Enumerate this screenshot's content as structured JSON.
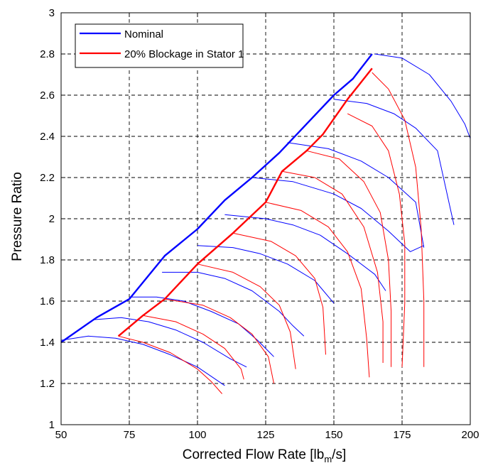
{
  "chart_data": {
    "type": "line",
    "title": "",
    "xlabel": "Corrected Flow Rate [lb_m/s]",
    "xlabel_parts": {
      "main": "Corrected Flow Rate [lb",
      "sub": "m",
      "tail": "/s]"
    },
    "ylabel": "Pressure Ratio",
    "xlim": [
      50,
      200
    ],
    "ylim": [
      1,
      3
    ],
    "xticks": [
      50,
      75,
      100,
      125,
      150,
      175,
      200
    ],
    "yticks": [
      1,
      1.2,
      1.4,
      1.6,
      1.8,
      2,
      2.2,
      2.4,
      2.6,
      2.8,
      3
    ],
    "xtick_labels": [
      "50",
      "75",
      "100",
      "125",
      "150",
      "175",
      "200"
    ],
    "ytick_labels": [
      "1",
      "1.2",
      "1.4",
      "1.6",
      "1.8",
      "2",
      "2.2",
      "2.4",
      "2.6",
      "2.8",
      "3"
    ],
    "grid": true,
    "grid_style": "dashed",
    "legend_position": "top-left",
    "series": [
      {
        "name": "Nominal",
        "color": "#0000ff",
        "role": "operating-line",
        "points": [
          [
            50,
            1.4
          ],
          [
            63,
            1.52
          ],
          [
            75,
            1.61
          ],
          [
            88,
            1.82
          ],
          [
            100,
            1.95
          ],
          [
            110,
            2.09
          ],
          [
            120,
            2.2
          ],
          [
            130,
            2.32
          ],
          [
            140,
            2.46
          ],
          [
            150,
            2.6
          ],
          [
            157,
            2.68
          ],
          [
            164,
            2.8
          ]
        ]
      },
      {
        "name": "20% Blockage in Stator 1",
        "color": "#ff0000",
        "role": "operating-line",
        "points": [
          [
            71,
            1.43
          ],
          [
            80,
            1.53
          ],
          [
            88,
            1.61
          ],
          [
            100,
            1.78
          ],
          [
            113,
            1.93
          ],
          [
            125,
            2.08
          ],
          [
            131,
            2.23
          ],
          [
            140,
            2.33
          ],
          [
            146,
            2.41
          ],
          [
            155,
            2.58
          ],
          [
            164,
            2.73
          ]
        ]
      }
    ],
    "speed_lines": [
      {
        "color": "#0000ff",
        "points": [
          [
            50,
            1.41
          ],
          [
            60,
            1.43
          ],
          [
            70,
            1.42
          ],
          [
            80,
            1.39
          ],
          [
            90,
            1.34
          ],
          [
            100,
            1.28
          ],
          [
            110,
            1.19
          ]
        ]
      },
      {
        "color": "#0000ff",
        "points": [
          [
            50,
            1.4
          ],
          [
            62,
            1.51
          ],
          [
            72,
            1.52
          ],
          [
            82,
            1.5
          ],
          [
            92,
            1.46
          ],
          [
            102,
            1.4
          ],
          [
            112,
            1.32
          ],
          [
            118,
            1.28
          ]
        ]
      },
      {
        "color": "#0000ff",
        "points": [
          [
            75,
            1.62
          ],
          [
            85,
            1.62
          ],
          [
            95,
            1.6
          ],
          [
            105,
            1.55
          ],
          [
            115,
            1.49
          ],
          [
            122,
            1.41
          ],
          [
            128,
            1.33
          ]
        ]
      },
      {
        "color": "#0000ff",
        "points": [
          [
            87,
            1.74
          ],
          [
            100,
            1.74
          ],
          [
            110,
            1.71
          ],
          [
            120,
            1.65
          ],
          [
            130,
            1.55
          ],
          [
            135,
            1.48
          ],
          [
            139,
            1.43
          ]
        ]
      },
      {
        "color": "#0000ff",
        "points": [
          [
            100,
            1.87
          ],
          [
            113,
            1.86
          ],
          [
            123,
            1.83
          ],
          [
            133,
            1.78
          ],
          [
            143,
            1.7
          ],
          [
            150,
            1.59
          ]
        ]
      },
      {
        "color": "#0000ff",
        "points": [
          [
            110,
            2.02
          ],
          [
            125,
            2.0
          ],
          [
            135,
            1.97
          ],
          [
            145,
            1.92
          ],
          [
            155,
            1.83
          ],
          [
            165,
            1.73
          ],
          [
            169,
            1.65
          ]
        ]
      },
      {
        "color": "#0000ff",
        "points": [
          [
            120,
            2.2
          ],
          [
            135,
            2.18
          ],
          [
            150,
            2.12
          ],
          [
            160,
            2.05
          ],
          [
            170,
            1.94
          ],
          [
            178,
            1.84
          ],
          [
            183,
            1.87
          ]
        ]
      },
      {
        "color": "#0000ff",
        "points": [
          [
            133,
            2.37
          ],
          [
            148,
            2.34
          ],
          [
            160,
            2.28
          ],
          [
            170,
            2.2
          ],
          [
            180,
            2.08
          ],
          [
            183,
            1.86
          ]
        ]
      },
      {
        "color": "#0000ff",
        "points": [
          [
            150,
            2.58
          ],
          [
            162,
            2.56
          ],
          [
            172,
            2.51
          ],
          [
            180,
            2.44
          ],
          [
            188,
            2.33
          ],
          [
            194,
            1.97
          ]
        ]
      },
      {
        "color": "#0000ff",
        "points": [
          [
            165,
            2.8
          ],
          [
            175,
            2.78
          ],
          [
            185,
            2.7
          ],
          [
            193,
            2.57
          ],
          [
            198,
            2.46
          ],
          [
            200,
            2.39
          ]
        ]
      },
      {
        "color": "#ff0000",
        "points": [
          [
            71,
            1.43
          ],
          [
            80,
            1.4
          ],
          [
            90,
            1.35
          ],
          [
            100,
            1.27
          ],
          [
            105,
            1.21
          ],
          [
            109,
            1.15
          ]
        ]
      },
      {
        "color": "#ff0000",
        "points": [
          [
            80,
            1.53
          ],
          [
            92,
            1.5
          ],
          [
            102,
            1.44
          ],
          [
            110,
            1.37
          ],
          [
            116,
            1.27
          ],
          [
            117,
            1.22
          ]
        ]
      },
      {
        "color": "#ff0000",
        "points": [
          [
            88,
            1.61
          ],
          [
            102,
            1.58
          ],
          [
            112,
            1.52
          ],
          [
            120,
            1.44
          ],
          [
            126,
            1.33
          ],
          [
            128,
            1.2
          ]
        ]
      },
      {
        "color": "#ff0000",
        "points": [
          [
            100,
            1.78
          ],
          [
            113,
            1.74
          ],
          [
            123,
            1.67
          ],
          [
            130,
            1.58
          ],
          [
            134,
            1.45
          ],
          [
            136,
            1.27
          ]
        ]
      },
      {
        "color": "#ff0000",
        "points": [
          [
            113,
            1.93
          ],
          [
            127,
            1.89
          ],
          [
            136,
            1.82
          ],
          [
            143,
            1.71
          ],
          [
            146,
            1.57
          ],
          [
            147,
            1.34
          ]
        ]
      },
      {
        "color": "#ff0000",
        "points": [
          [
            125,
            2.08
          ],
          [
            138,
            2.04
          ],
          [
            148,
            1.96
          ],
          [
            155,
            1.84
          ],
          [
            160,
            1.66
          ],
          [
            162,
            1.42
          ],
          [
            163,
            1.23
          ]
        ]
      },
      {
        "color": "#ff0000",
        "points": [
          [
            131,
            2.23
          ],
          [
            143,
            2.2
          ],
          [
            153,
            2.12
          ],
          [
            161,
            1.96
          ],
          [
            166,
            1.74
          ],
          [
            168,
            1.5
          ],
          [
            168,
            1.3
          ]
        ]
      },
      {
        "color": "#ff0000",
        "points": [
          [
            140,
            2.33
          ],
          [
            152,
            2.29
          ],
          [
            161,
            2.18
          ],
          [
            167,
            2.03
          ],
          [
            170,
            1.8
          ],
          [
            171,
            1.55
          ],
          [
            171,
            1.28
          ]
        ]
      },
      {
        "color": "#ff0000",
        "points": [
          [
            155,
            2.51
          ],
          [
            164,
            2.45
          ],
          [
            170,
            2.33
          ],
          [
            174,
            2.12
          ],
          [
            176,
            1.88
          ],
          [
            176,
            1.59
          ],
          [
            175,
            1.28
          ]
        ]
      },
      {
        "color": "#ff0000",
        "points": [
          [
            164,
            2.71
          ],
          [
            170,
            2.63
          ],
          [
            176,
            2.48
          ],
          [
            180,
            2.25
          ],
          [
            182,
            1.95
          ],
          [
            183,
            1.6
          ],
          [
            183,
            1.28
          ]
        ]
      }
    ]
  }
}
